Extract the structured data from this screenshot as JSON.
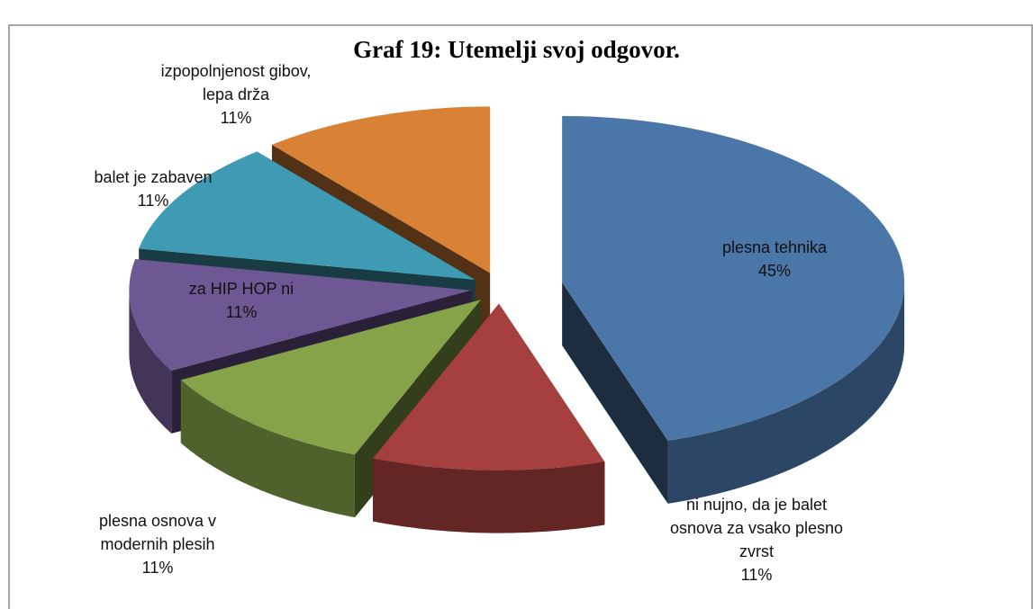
{
  "chart_data": {
    "type": "pie",
    "title": "Graf 19: Utemelji svoj odgovor.",
    "categories": [
      "plesna tehnika",
      "ni nujno, da je balet osnova za vsako plesno zvrst",
      "plesna osnova v modernih plesih",
      "za HIP HOP ni",
      "balet je zabaven",
      "izpopolnjenost gibov, lepa drža"
    ],
    "values": [
      45,
      11,
      11,
      11,
      11,
      11
    ],
    "value_labels": [
      "45%",
      "11%",
      "11%",
      "11%",
      "11%",
      "11%"
    ],
    "colors": [
      "#4a76a8",
      "#a5403e",
      "#86a34a",
      "#6e5893",
      "#3e9bb3",
      "#d98236"
    ]
  }
}
